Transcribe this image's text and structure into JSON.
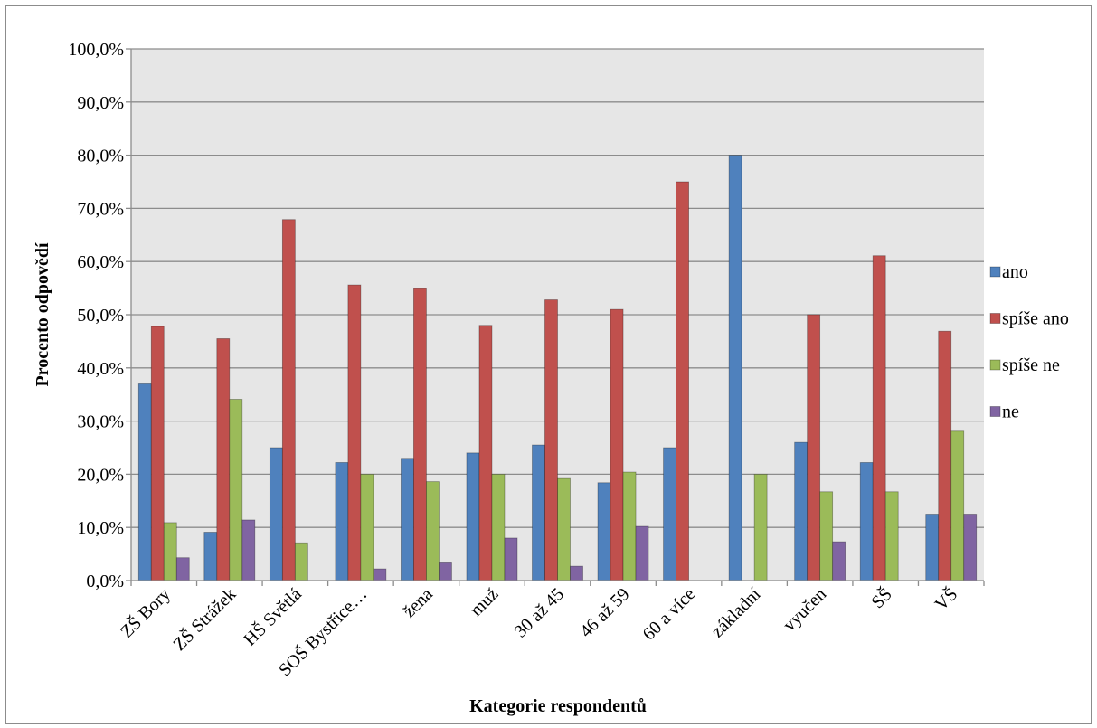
{
  "chart_data": {
    "type": "bar",
    "xlabel": "Kategorie respondentů",
    "ylabel": "Procento odpovědí",
    "ylim": [
      0,
      100
    ],
    "yticks": [
      "0,0%",
      "10,0%",
      "20,0%",
      "30,0%",
      "40,0%",
      "50,0%",
      "60,0%",
      "70,0%",
      "80,0%",
      "90,0%",
      "100,0%"
    ],
    "categories": [
      "ZŠ Bory",
      "ZŠ Strážek",
      "HŠ Světlá",
      "SOŠ Bystřice…",
      "žena",
      "muž",
      "30 až 45",
      "46 až 59",
      "60 a více",
      "základní",
      "vyučen",
      "SŠ",
      "VŠ"
    ],
    "series": [
      {
        "name": "ano",
        "color": "#4f81bd",
        "values": [
          37.0,
          9.1,
          25.0,
          22.2,
          23.0,
          24.0,
          25.5,
          18.4,
          25.0,
          80.0,
          26.0,
          22.2,
          12.5
        ]
      },
      {
        "name": "spíše ano",
        "color": "#c0504d",
        "values": [
          47.8,
          45.5,
          67.9,
          55.6,
          54.9,
          48.0,
          52.8,
          51.0,
          75.0,
          0,
          50.0,
          61.1,
          46.9
        ]
      },
      {
        "name": "spíše ne",
        "color": "#9bbb59",
        "values": [
          10.9,
          34.1,
          7.1,
          20.0,
          18.6,
          20.0,
          19.2,
          20.4,
          0,
          20.0,
          16.7,
          16.7,
          28.1
        ]
      },
      {
        "name": "ne",
        "color": "#8064a2",
        "values": [
          4.3,
          11.4,
          0,
          2.2,
          3.5,
          8.0,
          2.7,
          10.2,
          0,
          0,
          7.3,
          0,
          12.5
        ]
      }
    ],
    "legend_position": "right",
    "grid": true,
    "plot_background": "#e6e6e6"
  }
}
